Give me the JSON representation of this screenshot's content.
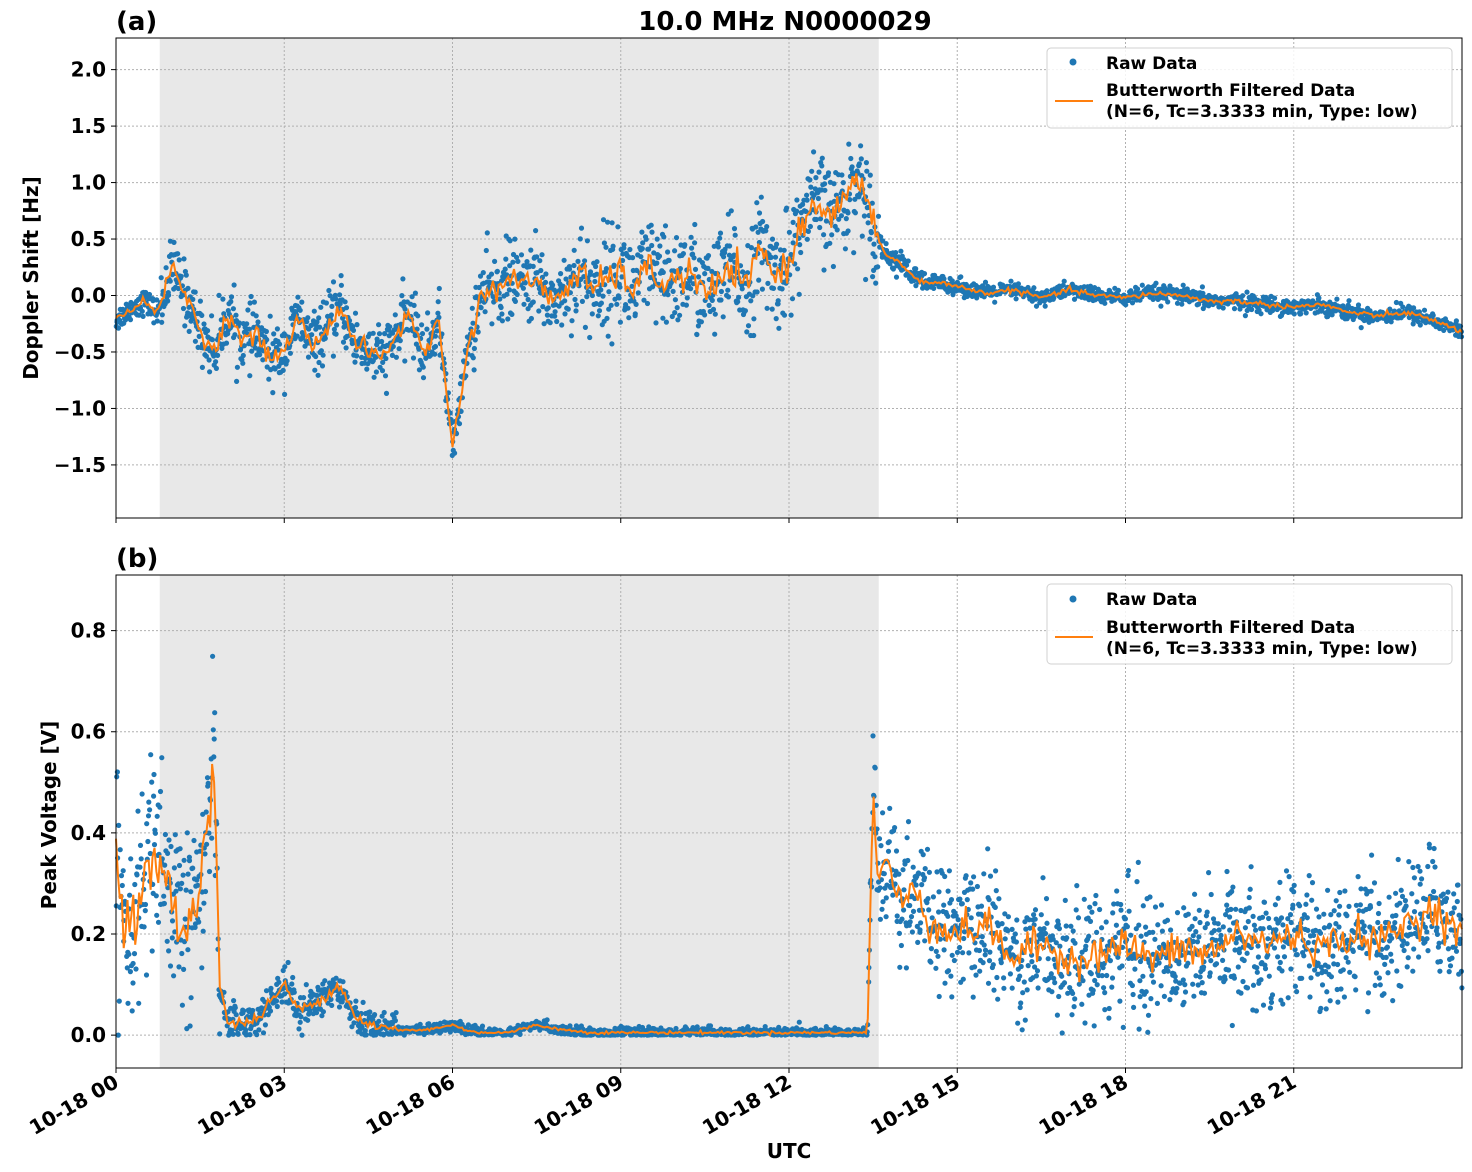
{
  "figure": {
    "title": "10.0 MHz N0000029",
    "xlabel": "UTC"
  },
  "colors": {
    "raw": "#1f77b4",
    "filtered": "#ff7f0e",
    "shade": "#e8e8e8",
    "grid": "#b0b0b0"
  },
  "chart_data": [
    {
      "type": "scatter",
      "panel_label": "(a)",
      "title": "10.0 MHz N0000029",
      "ylabel": "Doppler Shift [Hz]",
      "xlabel": "",
      "x_unit": "hours since 10-18 00 UTC",
      "xlim": [
        0,
        24
      ],
      "ylim": [
        -1.97,
        2.28
      ],
      "yticks": [
        {
          "v": 2.0,
          "label": "2.0"
        },
        {
          "v": 1.5,
          "label": "1.5"
        },
        {
          "v": 1.0,
          "label": "1.0"
        },
        {
          "v": 0.5,
          "label": "0.5"
        },
        {
          "v": 0.0,
          "label": "0.0"
        },
        {
          "v": -0.5,
          "label": "−0.5"
        },
        {
          "v": -1.0,
          "label": "−1.0"
        },
        {
          "v": -1.5,
          "label": "−1.5"
        }
      ],
      "shaded_region": [
        0.78,
        13.6
      ],
      "legend": {
        "placement": "top-right",
        "raw_label": "Raw Data",
        "filtered_label_1": "Butterworth Filtered Data",
        "filtered_label_2": "(N=6, Tc=3.3333 min, Type: low)"
      },
      "series": [
        {
          "name": "Butterworth Filtered Data",
          "x": [
            0.0,
            0.25,
            0.5,
            0.75,
            1.0,
            1.25,
            1.5,
            1.75,
            2.0,
            2.25,
            2.5,
            2.75,
            3.0,
            3.25,
            3.5,
            3.75,
            4.0,
            4.25,
            4.5,
            4.75,
            5.0,
            5.25,
            5.5,
            5.75,
            6.0,
            6.25,
            6.5,
            6.75,
            7.0,
            7.25,
            7.5,
            7.75,
            8.0,
            8.25,
            8.5,
            8.75,
            9.0,
            9.25,
            9.5,
            9.75,
            10.0,
            10.25,
            10.5,
            10.75,
            11.0,
            11.25,
            11.5,
            11.75,
            12.0,
            12.25,
            12.5,
            12.75,
            13.0,
            13.25,
            13.5,
            13.75,
            14.0,
            14.25,
            14.5,
            14.75,
            15.0,
            15.5,
            16.0,
            16.5,
            17.0,
            17.5,
            18.0,
            18.5,
            19.0,
            19.5,
            20.0,
            20.5,
            21.0,
            21.5,
            22.0,
            22.5,
            23.0,
            23.5,
            24.0
          ],
          "y": [
            -0.22,
            -0.12,
            -0.05,
            -0.15,
            0.25,
            0.0,
            -0.3,
            -0.5,
            -0.15,
            -0.4,
            -0.35,
            -0.55,
            -0.5,
            -0.2,
            -0.45,
            -0.3,
            -0.1,
            -0.4,
            -0.5,
            -0.55,
            -0.35,
            -0.15,
            -0.55,
            -0.2,
            -1.35,
            -0.55,
            0.0,
            0.05,
            0.15,
            0.1,
            0.15,
            -0.05,
            0.05,
            0.2,
            0.05,
            0.15,
            0.2,
            0.05,
            0.25,
            0.1,
            0.15,
            0.2,
            0.0,
            0.1,
            0.25,
            0.05,
            0.45,
            0.15,
            0.3,
            0.65,
            0.85,
            0.7,
            0.85,
            1.05,
            0.6,
            0.35,
            0.28,
            0.15,
            0.1,
            0.12,
            0.08,
            0.02,
            0.05,
            -0.02,
            0.05,
            0.0,
            -0.02,
            0.02,
            0.0,
            -0.05,
            -0.05,
            -0.08,
            -0.1,
            -0.08,
            -0.15,
            -0.18,
            -0.15,
            -0.22,
            -0.32
          ]
        },
        {
          "name": "Raw Data",
          "x": [],
          "y_center": [],
          "spread": []
        }
      ]
    },
    {
      "type": "scatter",
      "panel_label": "(b)",
      "title": "",
      "ylabel": "Peak Voltage [V]",
      "xlabel": "UTC",
      "x_unit": "hours since 10-18 00 UTC",
      "xlim": [
        0,
        24
      ],
      "ylim": [
        -0.065,
        0.91
      ],
      "yticks": [
        {
          "v": 0.8,
          "label": "0.8"
        },
        {
          "v": 0.6,
          "label": "0.6"
        },
        {
          "v": 0.4,
          "label": "0.4"
        },
        {
          "v": 0.2,
          "label": "0.2"
        },
        {
          "v": 0.0,
          "label": "0.0"
        }
      ],
      "xticks": [
        {
          "v": 0,
          "label": "10-18 00"
        },
        {
          "v": 3,
          "label": "10-18 03"
        },
        {
          "v": 6,
          "label": "10-18 06"
        },
        {
          "v": 9,
          "label": "10-18 09"
        },
        {
          "v": 12,
          "label": "10-18 12"
        },
        {
          "v": 15,
          "label": "10-18 15"
        },
        {
          "v": 18,
          "label": "10-18 18"
        },
        {
          "v": 21,
          "label": "10-18 21"
        }
      ],
      "shaded_region": [
        0.78,
        13.6
      ],
      "legend": {
        "placement": "top-right",
        "raw_label": "Raw Data",
        "filtered_label_1": "Butterworth Filtered Data",
        "filtered_label_2": "(N=6, Tc=3.3333 min, Type: low)"
      },
      "series": [
        {
          "name": "Butterworth Filtered Data",
          "x": [
            0.0,
            0.25,
            0.5,
            0.75,
            1.0,
            1.25,
            1.5,
            1.75,
            1.85,
            2.0,
            2.5,
            3.0,
            3.25,
            3.5,
            4.0,
            4.25,
            4.5,
            5.0,
            5.5,
            6.0,
            6.25,
            6.5,
            7.0,
            7.5,
            8.0,
            8.5,
            9.0,
            10.0,
            11.0,
            12.0,
            13.0,
            13.4,
            13.5,
            13.6,
            13.75,
            14.0,
            14.25,
            14.5,
            15.0,
            15.5,
            16.0,
            16.5,
            17.0,
            17.5,
            18.0,
            18.5,
            19.0,
            19.5,
            20.0,
            20.5,
            21.0,
            21.5,
            22.0,
            22.5,
            23.0,
            23.5,
            24.0
          ],
          "y": [
            0.35,
            0.2,
            0.3,
            0.35,
            0.25,
            0.2,
            0.3,
            0.55,
            0.1,
            0.02,
            0.03,
            0.1,
            0.05,
            0.06,
            0.1,
            0.04,
            0.02,
            0.01,
            0.01,
            0.02,
            0.01,
            0.005,
            0.005,
            0.02,
            0.01,
            0.005,
            0.005,
            0.005,
            0.005,
            0.005,
            0.005,
            0.005,
            0.5,
            0.3,
            0.35,
            0.25,
            0.3,
            0.22,
            0.2,
            0.22,
            0.15,
            0.18,
            0.15,
            0.16,
            0.18,
            0.15,
            0.17,
            0.16,
            0.2,
            0.18,
            0.2,
            0.17,
            0.2,
            0.18,
            0.22,
            0.25,
            0.2
          ]
        },
        {
          "name": "Raw Data",
          "x": [],
          "y_center": [],
          "spread": []
        }
      ]
    }
  ]
}
